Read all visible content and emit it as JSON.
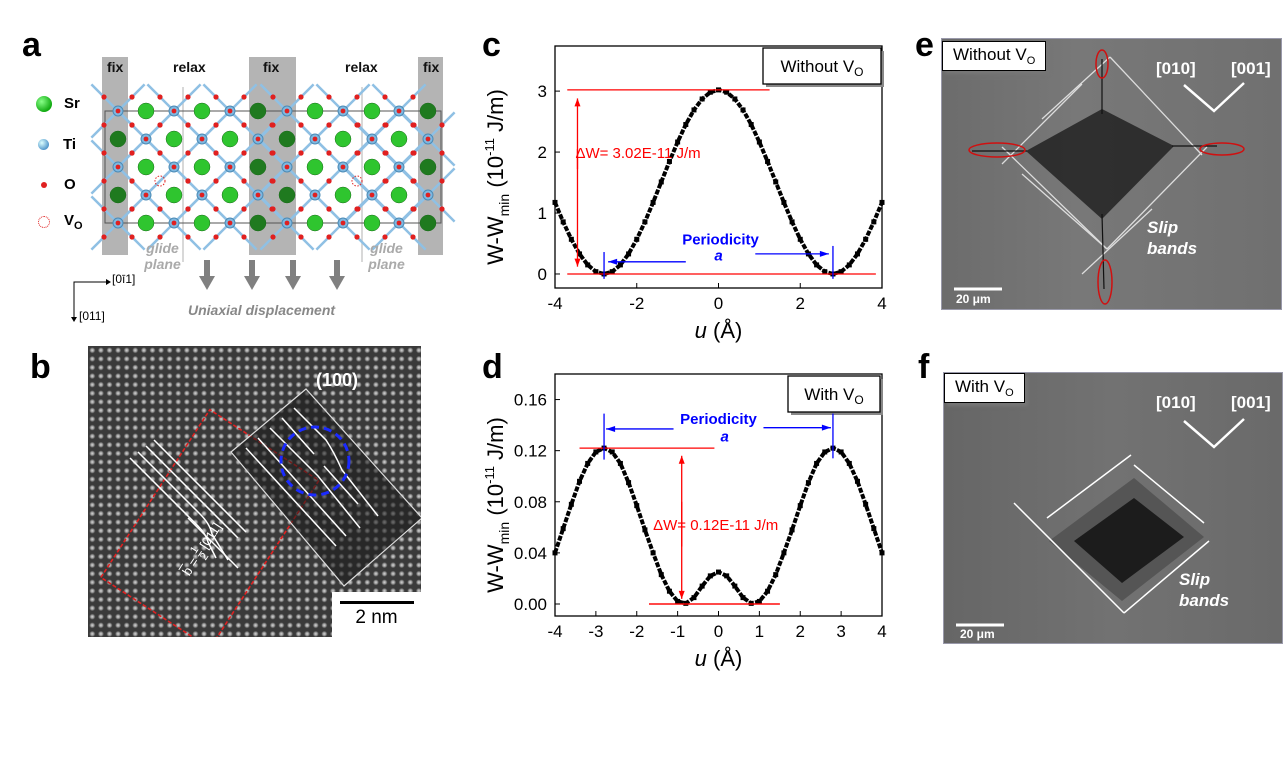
{
  "panels": {
    "a": "a",
    "b": "b",
    "c": "c",
    "d": "d",
    "e": "e",
    "f": "f"
  },
  "panel_a": {
    "legend": [
      {
        "label": "Sr",
        "color": "#2fc52f"
      },
      {
        "label": "Ti",
        "color": "#7fb8e0"
      },
      {
        "label": "O",
        "color": "#e02020"
      },
      {
        "label": "V",
        "sub": "O",
        "color": "#e02020"
      }
    ],
    "strips": [
      "fix",
      "relax",
      "fix",
      "relax",
      "fix"
    ],
    "glide_plane": [
      "glide plane",
      "glide plane"
    ],
    "dir_x": "[0ī1]",
    "dir_y": "[011]",
    "displacement_label": "Uniaxial displacement",
    "colors": {
      "fix_strip": "#b4b4b4",
      "Sr": "#2fc52f",
      "Sr_fixed": "#1f7a1f",
      "Ti": "#7fb8e0",
      "O": "#e02020",
      "bond": "#8fc0e4"
    }
  },
  "panel_b": {
    "plane": "(100)",
    "burgers": "b = 1/2 [011]",
    "burgers_b": "b",
    "burgers_eq": "=",
    "burgers_num": "1",
    "burgers_den": "2",
    "burgers_dir": "[011]",
    "scale": "2 nm"
  },
  "panel_e": {
    "tag": "Without V",
    "tag_sub": "O",
    "dir1": "[010]",
    "dir2": "[001]",
    "slip1": "Slip",
    "slip2": "bands",
    "scale": "20 μm"
  },
  "panel_f": {
    "tag": "With V",
    "tag_sub": "O",
    "dir1": "[010]",
    "dir2": "[001]",
    "slip1": "Slip",
    "slip2": "bands",
    "scale": "20 μm"
  },
  "chart_data": [
    {
      "id": "c",
      "type": "scatter",
      "xlabel": "u (Å)",
      "xlabel_var": "u",
      "xlabel_unit": " (Å)",
      "ylabel_parts": [
        "W-W",
        "min",
        " (10",
        "-11",
        " J/m)"
      ],
      "xlim": [
        -4,
        4
      ],
      "ylim": [
        -0.23,
        3.74
      ],
      "xticks": [
        -4,
        -2,
        0,
        2,
        4
      ],
      "xtick_labels": [
        "-4",
        "-2",
        "0",
        "2",
        "4"
      ],
      "yticks": [
        0,
        1,
        2,
        3
      ],
      "ytick_labels": [
        "0",
        "1",
        "2",
        "3"
      ],
      "legend": "Without V",
      "legend_sub": "O",
      "annotation_dw": "ΔW= 3.02E-11 J/m",
      "annotation_period": "Periodicity",
      "annotation_a": "a",
      "grid": false,
      "marker_color": "#000000",
      "annotation_colors": {
        "energy": "#ff0000",
        "period": "#0000ff"
      },
      "x": [
        -4,
        -3.8,
        -3.6,
        -3.4,
        -3.2,
        -3,
        -2.8,
        -2.6,
        -2.4,
        -2.2,
        -2,
        -1.8,
        -1.6,
        -1.4,
        -1.2,
        -1,
        -0.8,
        -0.6,
        -0.4,
        -0.2,
        0,
        0.2,
        0.4,
        0.6,
        0.8,
        1,
        1.2,
        1.4,
        1.6,
        1.8,
        2,
        2.2,
        2.4,
        2.6,
        2.8,
        3,
        3.2,
        3.4,
        3.6,
        3.8,
        4
      ],
      "y": [
        1.174,
        0.855,
        0.569,
        0.329,
        0.149,
        0.038,
        0,
        0.038,
        0.149,
        0.329,
        0.569,
        0.855,
        1.174,
        1.51,
        1.846,
        2.165,
        2.452,
        2.691,
        2.871,
        2.982,
        3.02,
        2.982,
        2.871,
        2.691,
        2.452,
        2.165,
        1.846,
        1.51,
        1.174,
        0.855,
        0.569,
        0.329,
        0.149,
        0.038,
        0,
        0.038,
        0.149,
        0.329,
        0.569,
        0.855,
        1.174
      ]
    },
    {
      "id": "d",
      "type": "scatter",
      "xlabel": "u (Å)",
      "xlabel_var": "u",
      "xlabel_unit": " (Å)",
      "ylabel_parts": [
        "W-W",
        "min",
        " (10",
        "-11",
        " J/m)"
      ],
      "xlim": [
        -4,
        4
      ],
      "ylim": [
        -0.0094,
        0.18
      ],
      "xticks": [
        -4,
        -3,
        -2,
        -1,
        0,
        1,
        2,
        3,
        4
      ],
      "xtick_labels": [
        "-4",
        "-3",
        "-2",
        "-1",
        "0",
        "1",
        "2",
        "3",
        "4"
      ],
      "yticks": [
        0,
        0.04,
        0.08,
        0.12,
        0.16
      ],
      "ytick_labels": [
        "0.00",
        "0.04",
        "0.08",
        "0.12",
        "0.16"
      ],
      "legend": "With V",
      "legend_sub": "O",
      "annotation_dw": "ΔW= 0.12E-11 J/m",
      "annotation_period": "Periodicity",
      "annotation_a": "a",
      "grid": false,
      "marker_color": "#000000",
      "annotation_colors": {
        "energy": "#ff0000",
        "period": "#0000ff"
      },
      "x": [
        -4,
        -3.8,
        -3.6,
        -3.4,
        -3.2,
        -3,
        -2.8,
        -2.6,
        -2.4,
        -2.2,
        -2,
        -1.8,
        -1.6,
        -1.4,
        -1.2,
        -1,
        -0.8,
        -0.6,
        -0.4,
        -0.2,
        0,
        0.2,
        0.4,
        0.6,
        0.8,
        1,
        1.2,
        1.4,
        1.6,
        1.8,
        2,
        2.2,
        2.4,
        2.6,
        2.8,
        3,
        3.2,
        3.4,
        3.6,
        3.8,
        4
      ],
      "y": [
        0.04,
        0.059,
        0.078,
        0.096,
        0.11,
        0.119,
        0.122,
        0.119,
        0.11,
        0.095,
        0.077,
        0.058,
        0.04,
        0.023,
        0.01,
        0.002,
        0.0005,
        0.005,
        0.014,
        0.022,
        0.025,
        0.022,
        0.014,
        0.005,
        0.0005,
        0.002,
        0.01,
        0.023,
        0.04,
        0.058,
        0.077,
        0.095,
        0.11,
        0.119,
        0.122,
        0.119,
        0.11,
        0.096,
        0.078,
        0.059,
        0.04
      ]
    }
  ]
}
